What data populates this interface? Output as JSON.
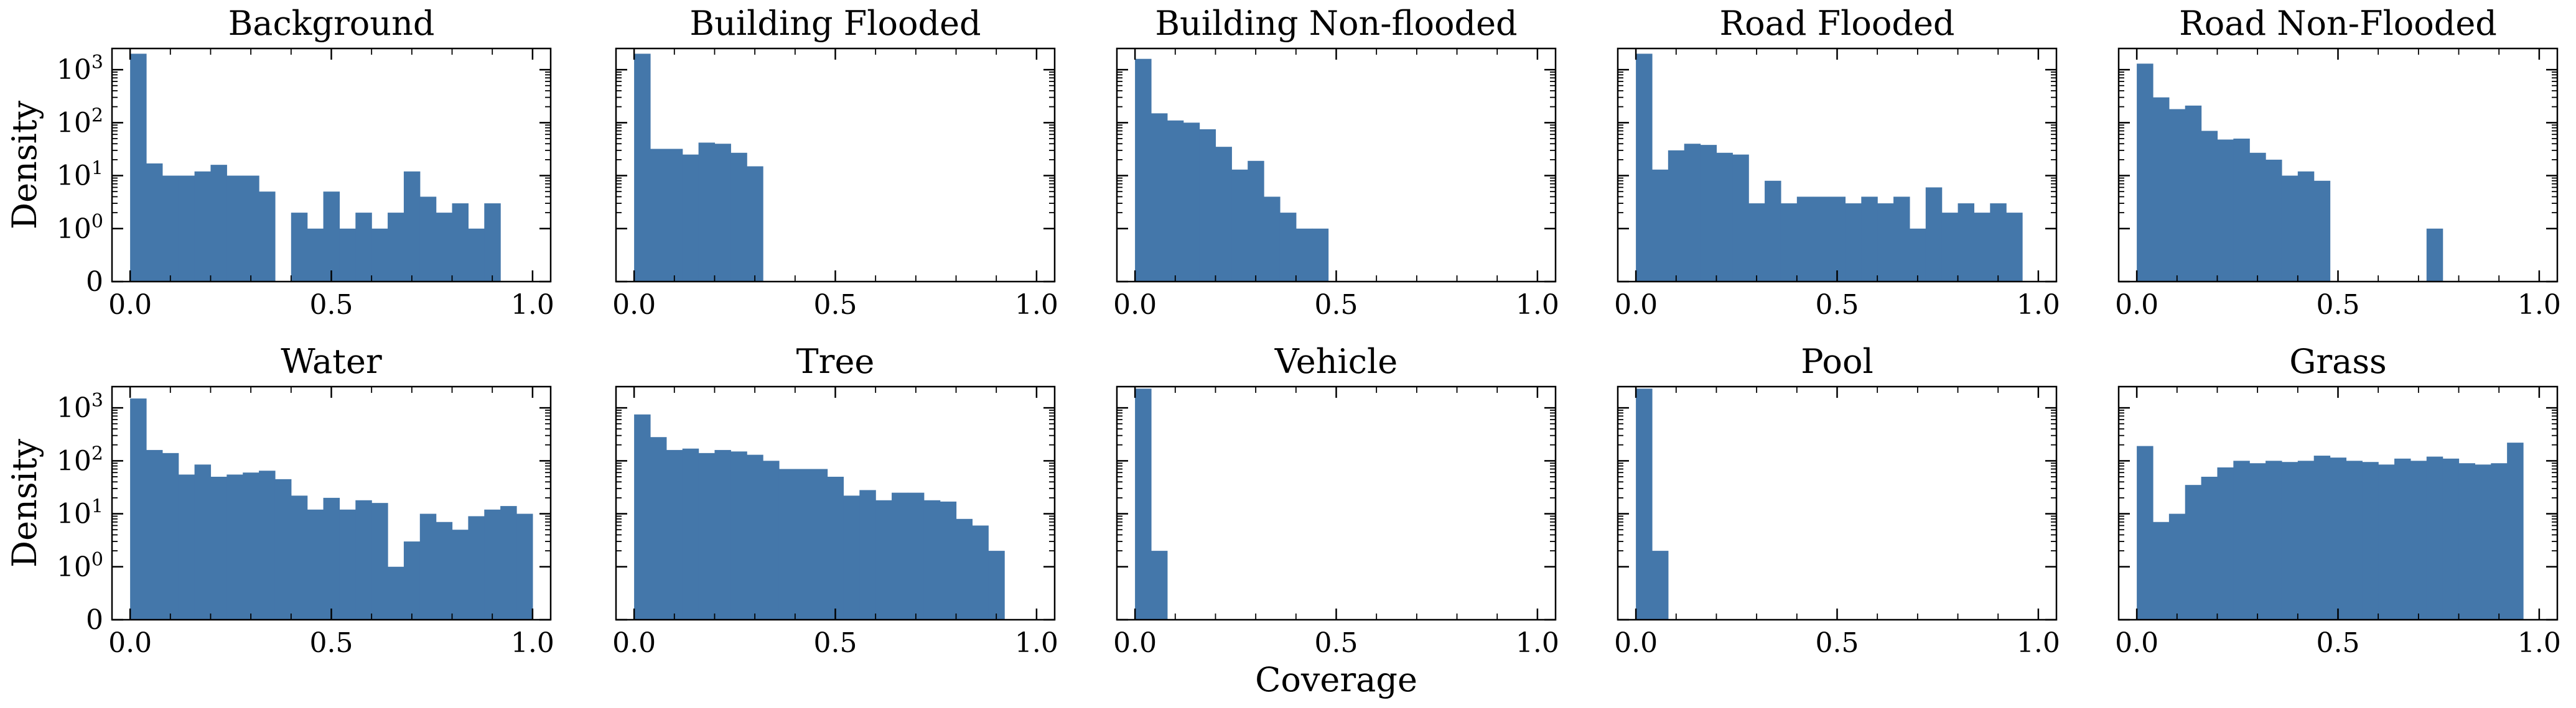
{
  "chart_data": {
    "type": "bar",
    "bar_color": "#4477aa",
    "xlabel": "Coverage",
    "ylabel": "Density",
    "x_ticks": [
      "0.0",
      "0.5",
      "1.0"
    ],
    "y_ticks": [
      {
        "base": "0",
        "exp": ""
      },
      {
        "base": "10",
        "exp": "0"
      },
      {
        "base": "10",
        "exp": "1"
      },
      {
        "base": "10",
        "exp": "2"
      },
      {
        "base": "10",
        "exp": "3"
      }
    ],
    "y_scale": "symlog",
    "xlim": [
      0,
      1
    ],
    "ylim_log10": [
      -1,
      3.4
    ],
    "bin_width": 0.04,
    "grid": false,
    "panels": [
      {
        "title": "Background",
        "values": [
          2000,
          17,
          10,
          10,
          12,
          16,
          10,
          10,
          5,
          0,
          2,
          1,
          5,
          1,
          2,
          1,
          2,
          12,
          4,
          2,
          3,
          1,
          3
        ]
      },
      {
        "title": "Building Flooded",
        "values": [
          2000,
          32,
          32,
          25,
          42,
          40,
          27,
          15
        ]
      },
      {
        "title": "Building Non-flooded",
        "values": [
          1600,
          150,
          110,
          100,
          75,
          35,
          13,
          19,
          4,
          2,
          1,
          1
        ]
      },
      {
        "title": "Road Flooded",
        "values": [
          2000,
          13,
          30,
          40,
          38,
          27,
          25,
          3,
          8,
          3,
          4,
          4,
          4,
          3,
          4,
          3,
          4,
          1,
          6,
          2,
          3,
          2,
          3,
          2
        ]
      },
      {
        "title": "Road Non-Flooded",
        "values": [
          1300,
          300,
          180,
          210,
          70,
          48,
          50,
          27,
          20,
          10,
          12,
          8,
          0,
          0,
          0,
          0,
          0,
          0,
          1
        ]
      },
      {
        "title": "Water",
        "values": [
          1500,
          160,
          140,
          55,
          85,
          50,
          55,
          60,
          65,
          45,
          22,
          12,
          20,
          12,
          18,
          16,
          1,
          3,
          10,
          7,
          5,
          9,
          12,
          14,
          10
        ]
      },
      {
        "title": "Tree",
        "values": [
          750,
          280,
          160,
          170,
          140,
          160,
          150,
          130,
          100,
          70,
          70,
          70,
          50,
          22,
          28,
          18,
          25,
          25,
          18,
          17,
          8,
          6,
          2
        ]
      },
      {
        "title": "Vehicle",
        "values": [
          2300,
          2
        ]
      },
      {
        "title": "Pool",
        "values": [
          2300,
          2
        ]
      },
      {
        "title": "Grass",
        "values": [
          190,
          7,
          10,
          35,
          50,
          75,
          100,
          90,
          100,
          95,
          100,
          125,
          115,
          100,
          95,
          85,
          110,
          100,
          120,
          110,
          90,
          85,
          90,
          220
        ]
      }
    ]
  }
}
